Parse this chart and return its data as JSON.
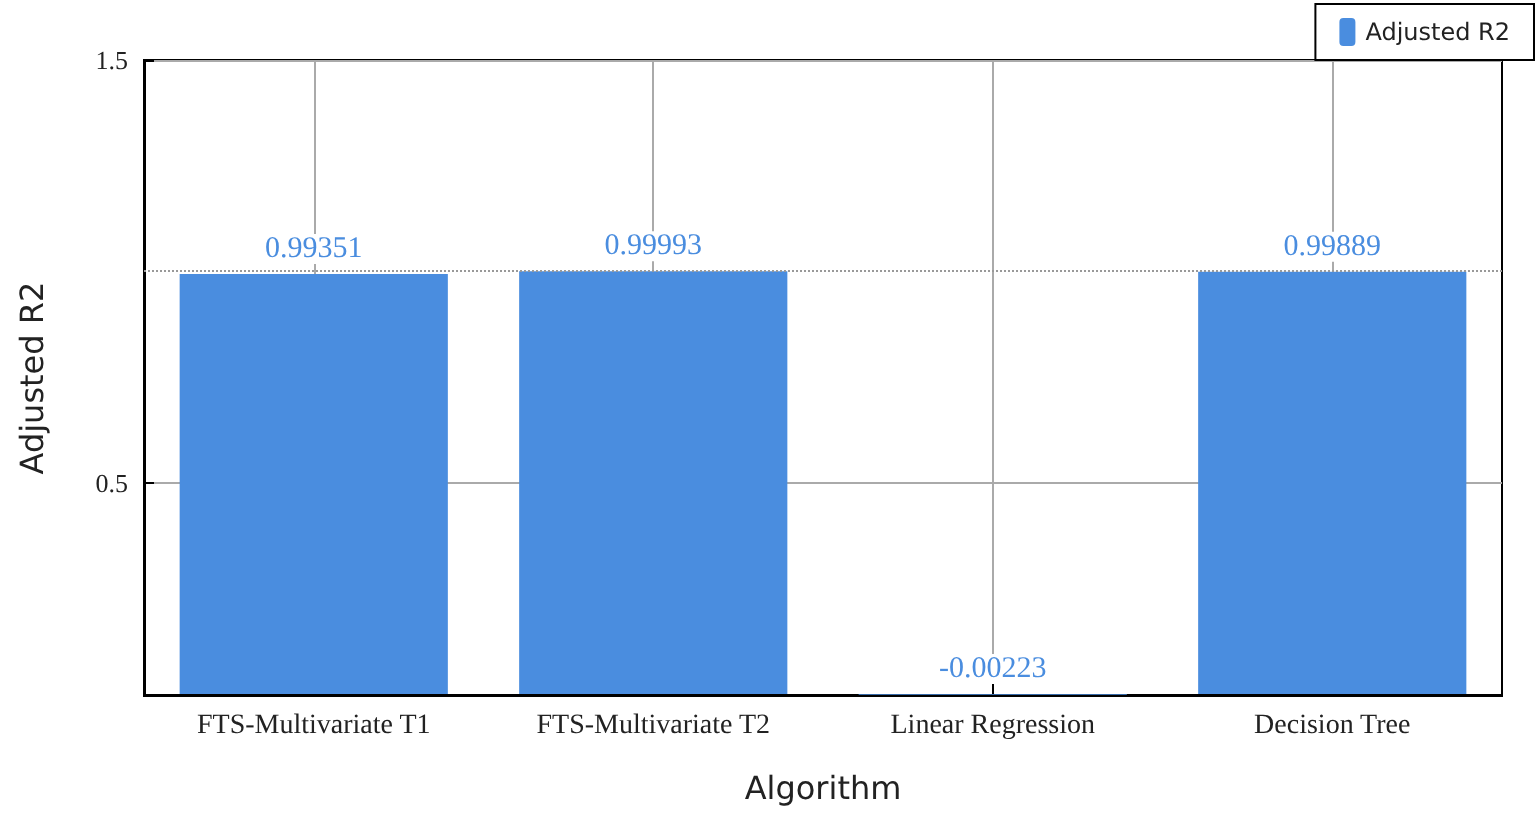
{
  "chart_data": {
    "type": "bar",
    "xlabel": "Algorithm",
    "ylabel": "Adjusted R2",
    "categories": [
      "FTS-Multivariate T1",
      "FTS-Multivariate T2",
      "Linear Regression",
      "Decision Tree"
    ],
    "series": [
      {
        "name": "Adjusted R2",
        "color": "#4a8ddf",
        "values": [
          0.99351,
          0.99993,
          -0.00223,
          0.99889
        ]
      }
    ],
    "ylim": [
      -0.005,
      1.5
    ],
    "yticks": [
      0.5,
      1.5
    ],
    "ref_lines": [
      {
        "axis": "y",
        "value": 1,
        "color": "#999999",
        "line_style": "dotted"
      }
    ],
    "data_labels": true,
    "grid": true,
    "legend": "top right"
  }
}
